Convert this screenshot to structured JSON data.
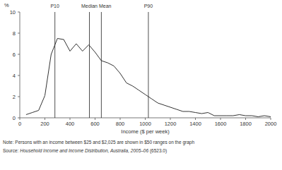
{
  "chart_data": {
    "type": "line",
    "ylabel": "%",
    "xlabel": "Income ($ per week)",
    "x": [
      50,
      100,
      150,
      200,
      250,
      300,
      350,
      400,
      450,
      500,
      550,
      600,
      650,
      700,
      750,
      800,
      850,
      900,
      950,
      1000,
      1050,
      1100,
      1150,
      1200,
      1250,
      1300,
      1350,
      1400,
      1450,
      1500,
      1550,
      1600,
      1650,
      1700,
      1750,
      1800,
      1850,
      1900,
      1950,
      2000
    ],
    "values": [
      0.3,
      0.5,
      0.7,
      2.1,
      6.0,
      7.5,
      7.4,
      6.3,
      7.0,
      6.3,
      6.9,
      6.2,
      5.4,
      5.2,
      4.9,
      4.2,
      3.3,
      3.0,
      2.6,
      2.2,
      1.8,
      1.4,
      1.2,
      1.0,
      0.8,
      0.6,
      0.6,
      0.5,
      0.4,
      0.5,
      0.2,
      0.2,
      0.2,
      0.2,
      0.3,
      0.2,
      0.2,
      0.1,
      0.2,
      0.1
    ],
    "color": "#333333",
    "xlim": [
      0,
      2000
    ],
    "xticks": [
      0,
      200,
      400,
      600,
      800,
      1000,
      1200,
      1400,
      1600,
      1800,
      2000
    ],
    "ylim": [
      0,
      10
    ],
    "yticks": [
      0,
      2,
      4,
      6,
      8,
      10
    ],
    "grid": false,
    "annotations": [
      {
        "label": "P10",
        "x": 280
      },
      {
        "label": "Median",
        "x": 555
      },
      {
        "label": "Mean",
        "x": 650
      },
      {
        "label": "P90",
        "x": 1025
      }
    ],
    "note": "Note: Persons with an income between $25 and $2,025  are shown in $50 ranges on the graph",
    "source": [
      "Source: ",
      "Household Income and Income Distribution, Australia, 2005–06",
      " (6523.0)"
    ]
  }
}
